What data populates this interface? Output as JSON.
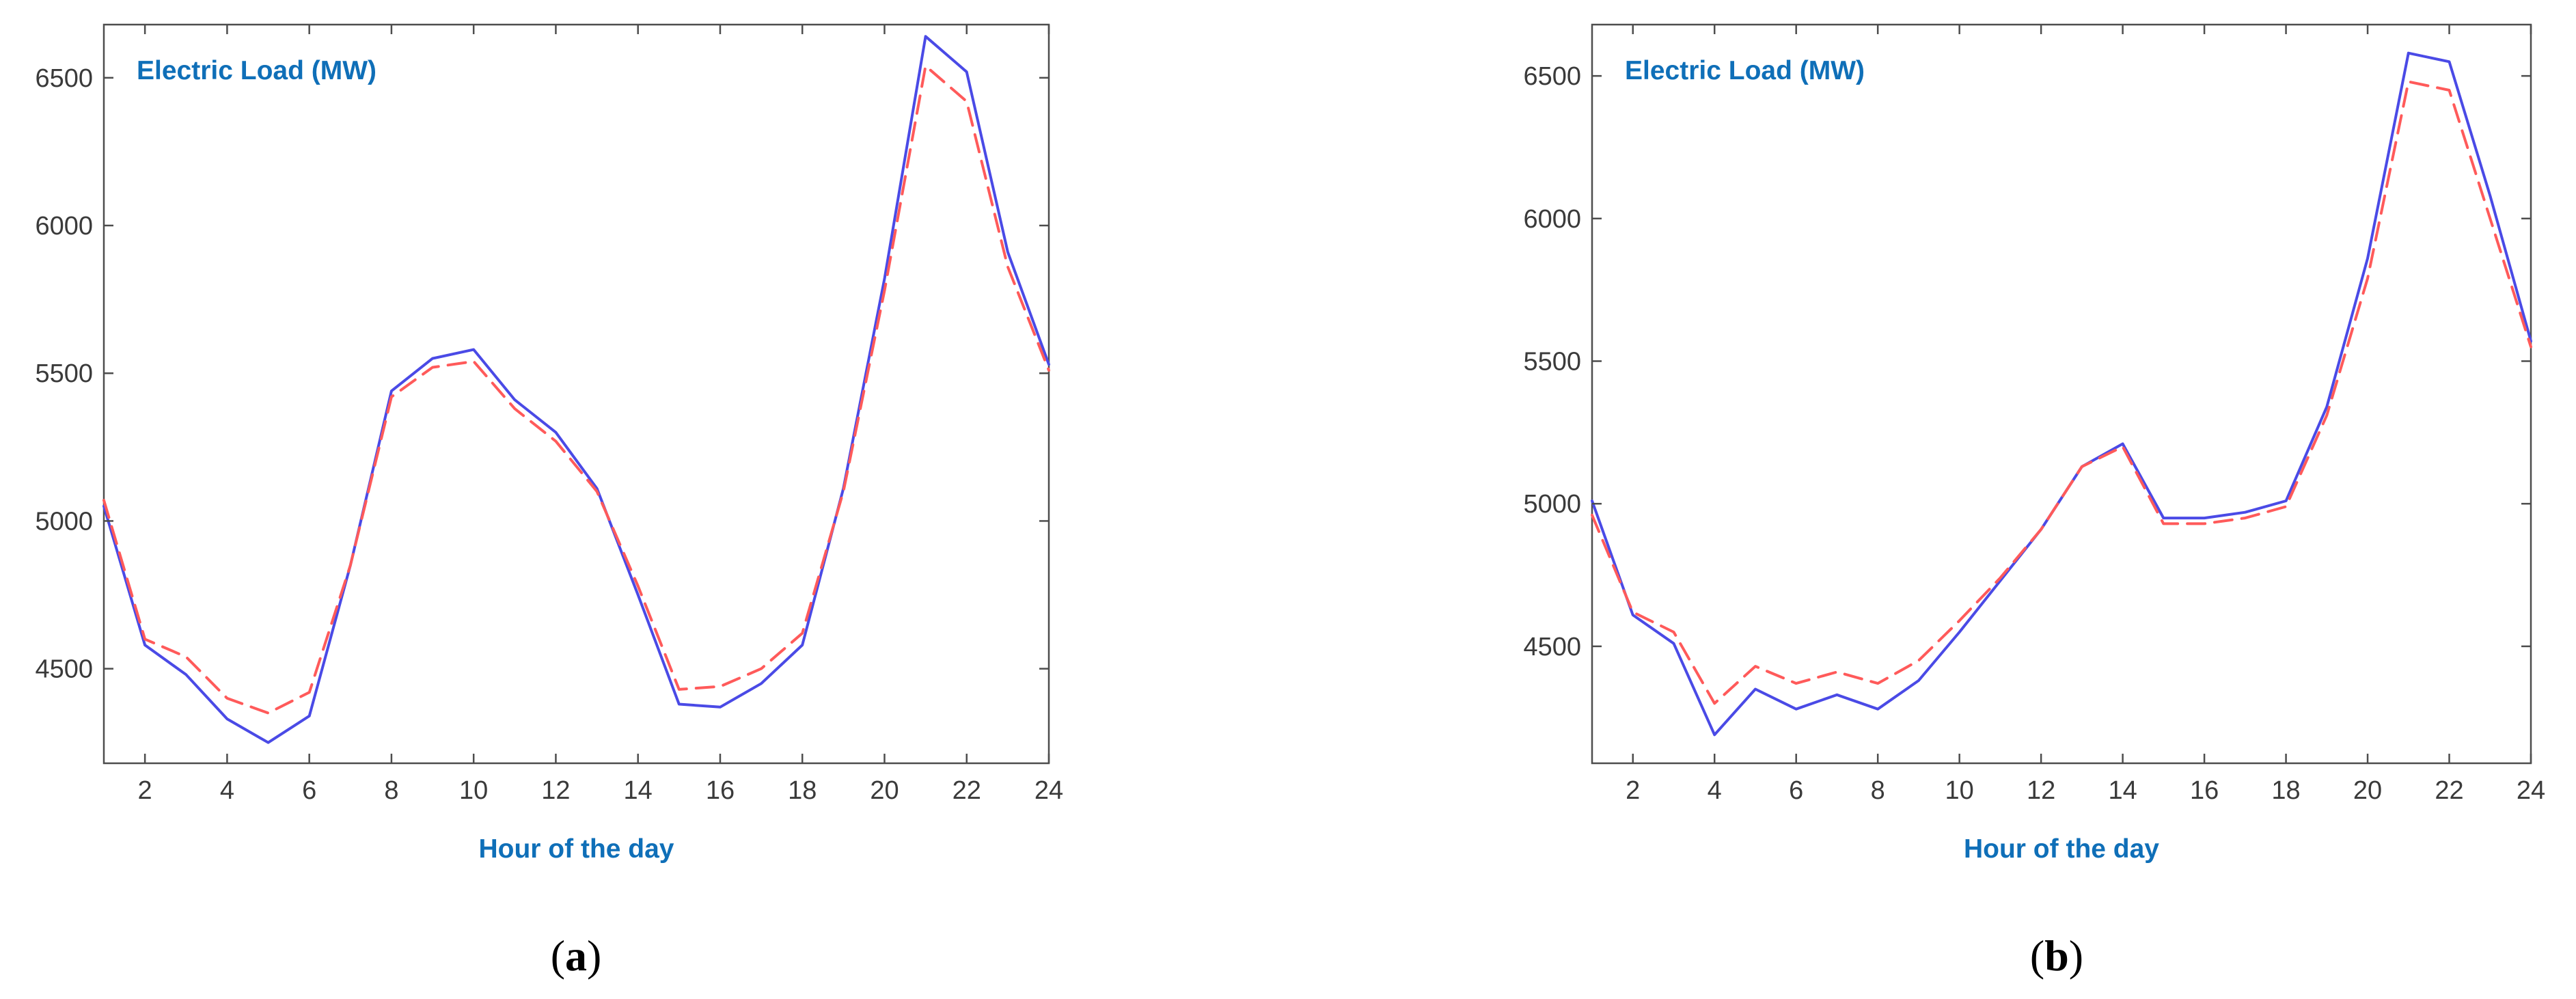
{
  "colors": {
    "actual_line": "#4a4ae6",
    "forecast_line": "#ff5a5a",
    "axis": "#4d4d4d",
    "title_text": "#0f6fb8"
  },
  "chart_data": [
    {
      "type": "line",
      "panel_label": "(a)",
      "panel_letter": "a",
      "ylabel": "Electric Load (MW)",
      "xlabel": "Hour of the day",
      "xlim": [
        1,
        24
      ],
      "ylim": [
        4180,
        6680
      ],
      "xticks": [
        2,
        4,
        6,
        8,
        10,
        12,
        14,
        16,
        18,
        20,
        22,
        24
      ],
      "yticks": [
        4500,
        5000,
        5500,
        6000,
        6500
      ],
      "grid": false,
      "x": [
        1,
        2,
        3,
        4,
        5,
        6,
        7,
        8,
        9,
        10,
        11,
        12,
        13,
        14,
        15,
        16,
        17,
        18,
        19,
        20,
        21,
        22,
        23,
        24
      ],
      "series": [
        {
          "style": "solid",
          "color": "#4a4ae6",
          "values": [
            5050,
            4580,
            4480,
            4330,
            4250,
            4340,
            4850,
            5440,
            5550,
            5580,
            5410,
            5300,
            5110,
            4750,
            4380,
            4370,
            4450,
            4580,
            5110,
            5820,
            6640,
            6520,
            5910,
            5530
          ]
        },
        {
          "style": "dashed",
          "color": "#ff5a5a",
          "values": [
            5070,
            4600,
            4540,
            4400,
            4350,
            4420,
            4850,
            5420,
            5520,
            5540,
            5380,
            5270,
            5100,
            4780,
            4430,
            4440,
            4500,
            4620,
            5100,
            5780,
            6540,
            6420,
            5860,
            5510
          ]
        }
      ]
    },
    {
      "type": "line",
      "panel_label": "(b)",
      "panel_letter": "b",
      "ylabel": "Electric Load (MW)",
      "xlabel": "Hour of the day",
      "xlim": [
        1,
        24
      ],
      "ylim": [
        4090,
        6680
      ],
      "xticks": [
        2,
        4,
        6,
        8,
        10,
        12,
        14,
        16,
        18,
        20,
        22,
        24
      ],
      "yticks": [
        4500,
        5000,
        5500,
        6000,
        6500
      ],
      "grid": false,
      "x": [
        1,
        2,
        3,
        4,
        5,
        6,
        7,
        8,
        9,
        10,
        11,
        12,
        13,
        14,
        15,
        16,
        17,
        18,
        19,
        20,
        21,
        22,
        23,
        24
      ],
      "series": [
        {
          "style": "solid",
          "color": "#4a4ae6",
          "values": [
            5010,
            4610,
            4510,
            4190,
            4350,
            4280,
            4330,
            4280,
            4380,
            4550,
            4730,
            4910,
            5130,
            5210,
            4950,
            4950,
            4970,
            5010,
            5340,
            5860,
            6580,
            6550,
            6080,
            5570
          ]
        },
        {
          "style": "dashed",
          "color": "#ff5a5a",
          "values": [
            4960,
            4620,
            4550,
            4300,
            4430,
            4370,
            4410,
            4370,
            4450,
            4590,
            4740,
            4910,
            5130,
            5200,
            4930,
            4930,
            4950,
            4990,
            5310,
            5790,
            6480,
            6450,
            6000,
            5550
          ]
        }
      ]
    }
  ]
}
